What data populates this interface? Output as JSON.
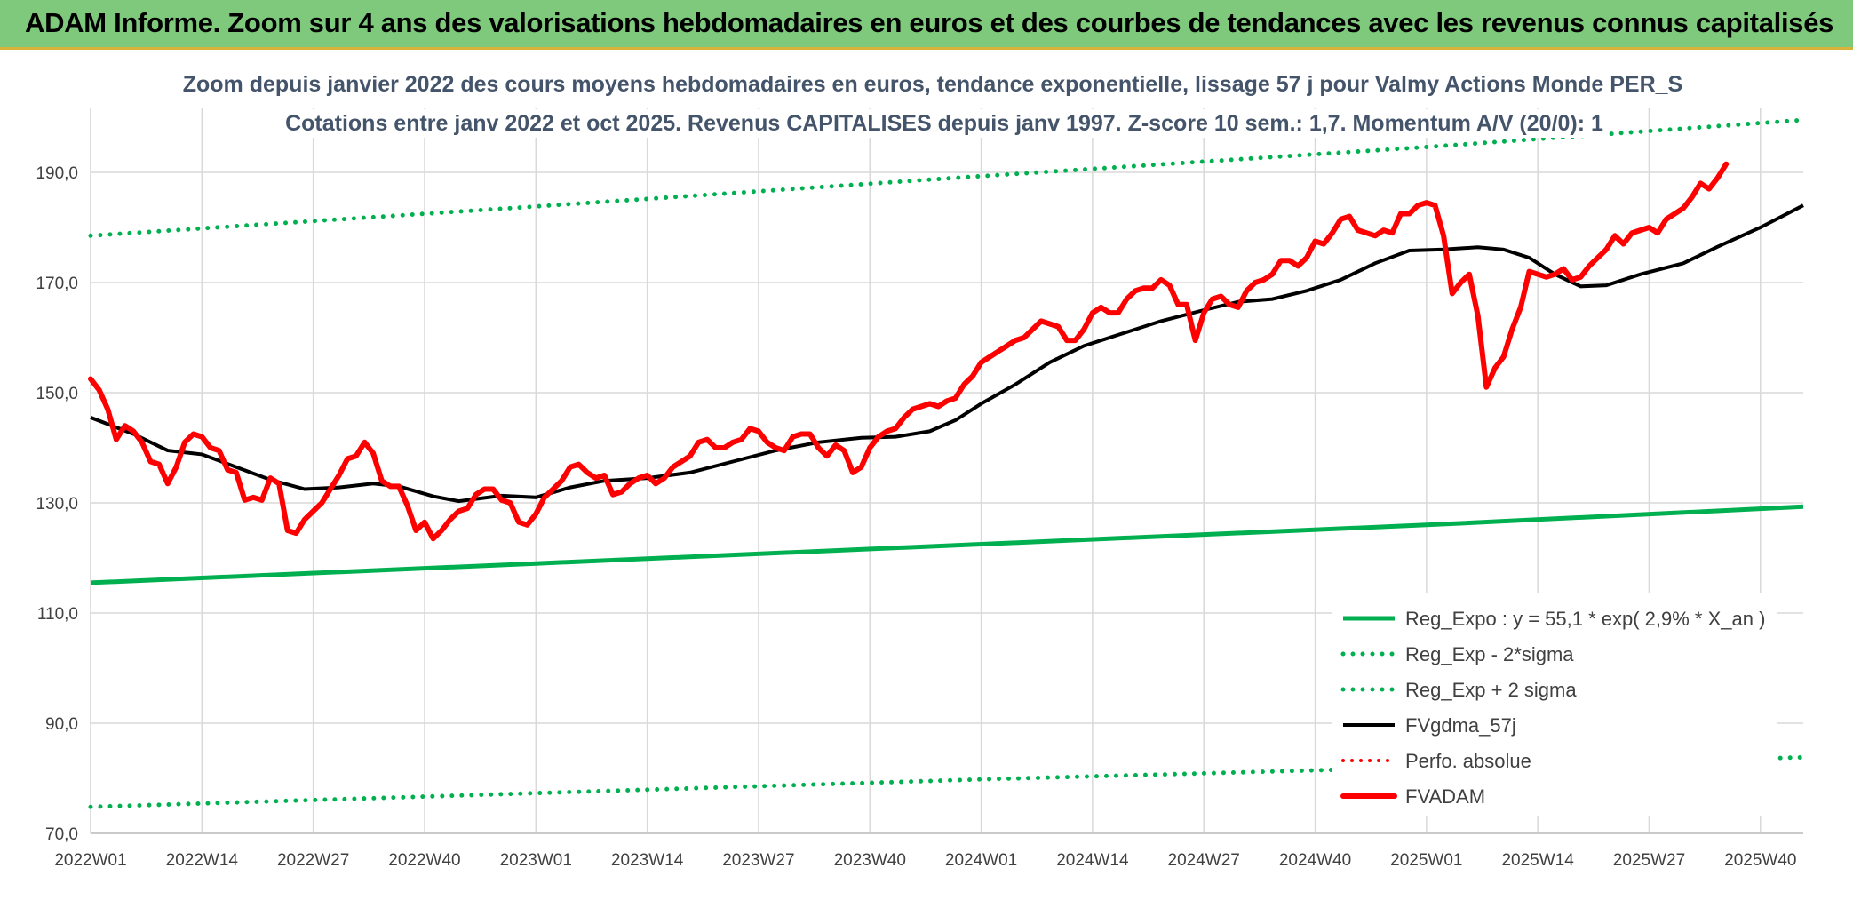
{
  "header": {
    "title": "ADAM Informe. Zoom sur 4 ans des valorisations hebdomadaires en euros et des courbes de tendances avec les revenus connus capitalisés"
  },
  "chart_data": {
    "type": "line",
    "title_line1": "Zoom depuis janvier 2022 des cours moyens hebdomadaires en euros, tendance exponentielle, lissage 57 j pour Valmy Actions Monde PER_S",
    "title_line2": "Cotations entre janv 2022 et oct 2025. Revenus CAPITALISES depuis janv 1997. Z-score 10 sem.: 1,7. Momentum A/V (20/0): 1",
    "xlabel": "",
    "ylabel": "",
    "ylim": [
      70,
      200
    ],
    "yticks": [
      "70,0",
      "90,0",
      "110,0",
      "130,0",
      "150,0",
      "170,0",
      "190,0"
    ],
    "ytick_values": [
      70,
      90,
      110,
      130,
      150,
      170,
      190
    ],
    "xticks": [
      "2022W01",
      "2022W14",
      "2022W27",
      "2022W40",
      "2023W01",
      "2023W14",
      "2023W27",
      "2023W40",
      "2024W01",
      "2024W14",
      "2024W27",
      "2024W40",
      "2025W01",
      "2025W14",
      "2025W27",
      "2025W40"
    ],
    "xtick_index": [
      0,
      13,
      26,
      39,
      52,
      65,
      78,
      91,
      104,
      117,
      130,
      143,
      156,
      169,
      182,
      195
    ],
    "n_points": 200,
    "grid": "vertical and horizontal",
    "legend_position": "bottom-right",
    "colors": {
      "reg_expo": "#00b050",
      "reg_minus": "#00b050",
      "reg_plus": "#00b050",
      "fvgdma": "#000000",
      "perfo": "#ff0000",
      "fvadam": "#ff0000"
    },
    "legend": [
      {
        "key": "reg_expo",
        "label": "Reg_Expo : y = 55,1 * exp( 2,9% *  X_an )",
        "style": "solid-thick"
      },
      {
        "key": "reg_minus",
        "label": "Reg_Exp - 2*sigma",
        "style": "dotted"
      },
      {
        "key": "reg_plus",
        "label": "Reg_Exp + 2 sigma",
        "style": "dotted"
      },
      {
        "key": "fvgdma",
        "label": "FVgdma_57j",
        "style": "solid"
      },
      {
        "key": "perfo",
        "label": "Perfo. absolue",
        "style": "dotted"
      },
      {
        "key": "fvadam",
        "label": "FVADAM",
        "style": "solid-thick"
      }
    ],
    "series": [
      {
        "name": "Reg_Expo : y = 55,1 * exp( 2,9% *  X_an )",
        "key": "reg_expo",
        "points": [
          [
            0,
            115.5
          ],
          [
            52,
            119
          ],
          [
            104,
            122.5
          ],
          [
            156,
            126
          ],
          [
            200,
            129.3
          ]
        ]
      },
      {
        "name": "Reg_Exp - 2*sigma",
        "key": "reg_minus",
        "points": [
          [
            0,
            74.8
          ],
          [
            52,
            77.3
          ],
          [
            104,
            79.8
          ],
          [
            156,
            82.0
          ],
          [
            200,
            83.8
          ]
        ]
      },
      {
        "name": "Reg_Exp + 2 sigma",
        "key": "reg_plus",
        "points": [
          [
            0,
            178.5
          ],
          [
            52,
            183.8
          ],
          [
            104,
            189.3
          ],
          [
            156,
            194.6
          ],
          [
            200,
            199.5
          ]
        ]
      },
      {
        "name": "FVgdma_57j",
        "key": "fvgdma",
        "points": [
          [
            0,
            145.5
          ],
          [
            5,
            142.5
          ],
          [
            9,
            139.5
          ],
          [
            13,
            138.8
          ],
          [
            17,
            136.5
          ],
          [
            21,
            134.2
          ],
          [
            25,
            132.5
          ],
          [
            29,
            132.8
          ],
          [
            33,
            133.5
          ],
          [
            36,
            133.0
          ],
          [
            40,
            131.2
          ],
          [
            43,
            130.3
          ],
          [
            48,
            131.3
          ],
          [
            52,
            131.0
          ],
          [
            56,
            132.8
          ],
          [
            60,
            134.0
          ],
          [
            65,
            134.5
          ],
          [
            70,
            135.5
          ],
          [
            75,
            137.5
          ],
          [
            80,
            139.5
          ],
          [
            85,
            141.0
          ],
          [
            90,
            141.8
          ],
          [
            94,
            142.0
          ],
          [
            98,
            143.0
          ],
          [
            101,
            145.0
          ],
          [
            104,
            148.0
          ],
          [
            108,
            151.5
          ],
          [
            112,
            155.5
          ],
          [
            116,
            158.5
          ],
          [
            120,
            160.5
          ],
          [
            125,
            163.0
          ],
          [
            130,
            165.0
          ],
          [
            134,
            166.5
          ],
          [
            138,
            167.0
          ],
          [
            142,
            168.5
          ],
          [
            146,
            170.5
          ],
          [
            150,
            173.5
          ],
          [
            154,
            175.8
          ],
          [
            158,
            176.0
          ],
          [
            162,
            176.4
          ],
          [
            165,
            176.0
          ],
          [
            168,
            174.5
          ],
          [
            171,
            171.5
          ],
          [
            174,
            169.3
          ],
          [
            177,
            169.5
          ],
          [
            181,
            171.5
          ],
          [
            186,
            173.5
          ],
          [
            190,
            176.5
          ],
          [
            195,
            180.0
          ],
          [
            200,
            184.0
          ],
          [
            206,
            187.2
          ]
        ]
      },
      {
        "name": "FVADAM",
        "key": "fvadam",
        "points": [
          [
            0,
            152.5
          ],
          [
            1,
            150.5
          ],
          [
            2,
            147.0
          ],
          [
            3,
            141.5
          ],
          [
            4,
            144.0
          ],
          [
            5,
            143.0
          ],
          [
            6,
            141.0
          ],
          [
            7,
            137.5
          ],
          [
            8,
            137.0
          ],
          [
            9,
            133.5
          ],
          [
            10,
            136.5
          ],
          [
            11,
            141.0
          ],
          [
            12,
            142.5
          ],
          [
            13,
            142.0
          ],
          [
            14,
            140.0
          ],
          [
            15,
            139.5
          ],
          [
            16,
            136.0
          ],
          [
            17,
            135.5
          ],
          [
            18,
            130.5
          ],
          [
            19,
            131.0
          ],
          [
            20,
            130.5
          ],
          [
            21,
            134.5
          ],
          [
            22,
            133.5
          ],
          [
            23,
            125.0
          ],
          [
            24,
            124.5
          ],
          [
            25,
            127.0
          ],
          [
            26,
            128.5
          ],
          [
            27,
            130.0
          ],
          [
            28,
            132.5
          ],
          [
            29,
            135.0
          ],
          [
            30,
            138.0
          ],
          [
            31,
            138.5
          ],
          [
            32,
            141.0
          ],
          [
            33,
            139.0
          ],
          [
            34,
            134.0
          ],
          [
            35,
            133.0
          ],
          [
            36,
            133.0
          ],
          [
            37,
            129.5
          ],
          [
            38,
            125.0
          ],
          [
            39,
            126.5
          ],
          [
            40,
            123.5
          ],
          [
            41,
            125.0
          ],
          [
            42,
            127.0
          ],
          [
            43,
            128.5
          ],
          [
            44,
            129.0
          ],
          [
            45,
            131.5
          ],
          [
            46,
            132.5
          ],
          [
            47,
            132.5
          ],
          [
            48,
            130.5
          ],
          [
            49,
            130.0
          ],
          [
            50,
            126.5
          ],
          [
            51,
            126.0
          ],
          [
            52,
            128.0
          ],
          [
            53,
            131.0
          ],
          [
            54,
            132.5
          ],
          [
            55,
            134.0
          ],
          [
            56,
            136.5
          ],
          [
            57,
            137.0
          ],
          [
            58,
            135.5
          ],
          [
            59,
            134.5
          ],
          [
            60,
            135.0
          ],
          [
            61,
            131.5
          ],
          [
            62,
            132.0
          ],
          [
            63,
            133.5
          ],
          [
            64,
            134.5
          ],
          [
            65,
            135.0
          ],
          [
            66,
            133.5
          ],
          [
            67,
            134.5
          ],
          [
            68,
            136.5
          ],
          [
            69,
            137.5
          ],
          [
            70,
            138.5
          ],
          [
            71,
            141.0
          ],
          [
            72,
            141.5
          ],
          [
            73,
            140.0
          ],
          [
            74,
            140.0
          ],
          [
            75,
            141.0
          ],
          [
            76,
            141.5
          ],
          [
            77,
            143.5
          ],
          [
            78,
            143.0
          ],
          [
            79,
            141.0
          ],
          [
            80,
            140.0
          ],
          [
            81,
            139.5
          ],
          [
            82,
            142.0
          ],
          [
            83,
            142.5
          ],
          [
            84,
            142.5
          ],
          [
            85,
            140.0
          ],
          [
            86,
            138.5
          ],
          [
            87,
            140.5
          ],
          [
            88,
            139.5
          ],
          [
            89,
            135.5
          ],
          [
            90,
            136.5
          ],
          [
            91,
            140.0
          ],
          [
            92,
            142.0
          ],
          [
            93,
            143.0
          ],
          [
            94,
            143.5
          ],
          [
            95,
            145.5
          ],
          [
            96,
            147.0
          ],
          [
            97,
            147.5
          ],
          [
            98,
            148.0
          ],
          [
            99,
            147.5
          ],
          [
            100,
            148.5
          ],
          [
            101,
            149.0
          ],
          [
            102,
            151.5
          ],
          [
            103,
            153.0
          ],
          [
            104,
            155.5
          ],
          [
            105,
            156.5
          ],
          [
            106,
            157.5
          ],
          [
            107,
            158.5
          ],
          [
            108,
            159.5
          ],
          [
            109,
            160.0
          ],
          [
            110,
            161.5
          ],
          [
            111,
            163.0
          ],
          [
            112,
            162.5
          ],
          [
            113,
            162.0
          ],
          [
            114,
            159.5
          ],
          [
            115,
            159.5
          ],
          [
            116,
            161.5
          ],
          [
            117,
            164.5
          ],
          [
            118,
            165.5
          ],
          [
            119,
            164.5
          ],
          [
            120,
            164.5
          ],
          [
            121,
            167.0
          ],
          [
            122,
            168.5
          ],
          [
            123,
            169.0
          ],
          [
            124,
            169.0
          ],
          [
            125,
            170.5
          ],
          [
            126,
            169.5
          ],
          [
            127,
            166.0
          ],
          [
            128,
            166.0
          ],
          [
            129,
            159.5
          ],
          [
            130,
            164.5
          ],
          [
            131,
            167.0
          ],
          [
            132,
            167.5
          ],
          [
            133,
            166.0
          ],
          [
            134,
            165.5
          ],
          [
            135,
            168.5
          ],
          [
            136,
            170.0
          ],
          [
            137,
            170.5
          ],
          [
            138,
            171.5
          ],
          [
            139,
            174.0
          ],
          [
            140,
            174.0
          ],
          [
            141,
            173.0
          ],
          [
            142,
            174.5
          ],
          [
            143,
            177.5
          ],
          [
            144,
            177.0
          ],
          [
            145,
            179.0
          ],
          [
            146,
            181.5
          ],
          [
            147,
            182.0
          ],
          [
            148,
            179.5
          ],
          [
            149,
            179.0
          ],
          [
            150,
            178.5
          ],
          [
            151,
            179.5
          ],
          [
            152,
            179.0
          ],
          [
            153,
            182.5
          ],
          [
            154,
            182.5
          ],
          [
            155,
            184.0
          ],
          [
            156,
            184.5
          ],
          [
            157,
            184.0
          ],
          [
            158,
            178.5
          ],
          [
            159,
            168.0
          ],
          [
            160,
            170.0
          ],
          [
            161,
            171.5
          ],
          [
            162,
            164.0
          ],
          [
            163,
            151.0
          ],
          [
            164,
            154.5
          ],
          [
            165,
            156.5
          ],
          [
            166,
            161.5
          ],
          [
            167,
            165.5
          ],
          [
            168,
            172.0
          ],
          [
            169,
            171.5
          ],
          [
            170,
            171.0
          ],
          [
            171,
            171.5
          ],
          [
            172,
            172.5
          ],
          [
            173,
            170.5
          ],
          [
            174,
            171.0
          ],
          [
            175,
            173.0
          ],
          [
            176,
            174.5
          ],
          [
            177,
            176.0
          ],
          [
            178,
            178.5
          ],
          [
            179,
            177.0
          ],
          [
            180,
            179.0
          ],
          [
            181,
            179.5
          ],
          [
            182,
            180.0
          ],
          [
            183,
            179.0
          ],
          [
            184,
            181.5
          ],
          [
            185,
            182.5
          ],
          [
            186,
            183.5
          ],
          [
            187,
            185.5
          ],
          [
            188,
            188.0
          ],
          [
            189,
            187.0
          ],
          [
            190,
            189.0
          ],
          [
            191,
            191.5
          ]
        ]
      }
    ]
  }
}
